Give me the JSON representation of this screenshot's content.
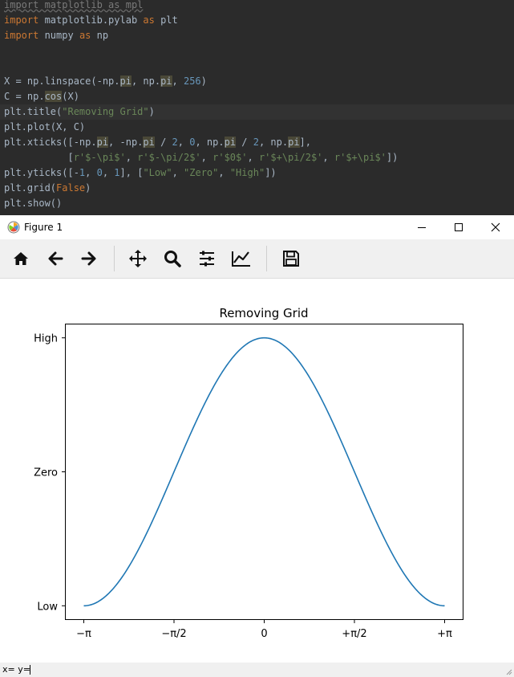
{
  "editor": {
    "lines": [
      {
        "segments": [
          {
            "t": "import matplotlib as mpl",
            "c": "dim"
          }
        ]
      },
      {
        "segments": [
          {
            "t": "import",
            "c": "kw"
          },
          {
            "t": " matplotlib.pylab "
          },
          {
            "t": "as",
            "c": "kw"
          },
          {
            "t": " plt"
          }
        ]
      },
      {
        "segments": [
          {
            "t": "import",
            "c": "kw"
          },
          {
            "t": " numpy "
          },
          {
            "t": "as",
            "c": "kw"
          },
          {
            "t": " np"
          }
        ]
      },
      {
        "segments": []
      },
      {
        "segments": []
      },
      {
        "segments": [
          {
            "t": "X = np.linspace(-np."
          },
          {
            "t": "pi",
            "c": "hl"
          },
          {
            "t": ", np."
          },
          {
            "t": "pi",
            "c": "hl"
          },
          {
            "t": ", "
          },
          {
            "t": "256",
            "c": "num"
          },
          {
            "t": ")"
          }
        ]
      },
      {
        "segments": [
          {
            "t": "C = np."
          },
          {
            "t": "cos",
            "c": "hl"
          },
          {
            "t": "(X)"
          }
        ]
      },
      {
        "segments": [
          {
            "t": "plt.title("
          },
          {
            "t": "\"Removing Grid\"",
            "c": "str"
          },
          {
            "t": ")"
          }
        ],
        "current": true
      },
      {
        "segments": [
          {
            "t": "plt.plot(X, C)"
          }
        ]
      },
      {
        "segments": [
          {
            "t": "plt.xticks([-np."
          },
          {
            "t": "pi",
            "c": "hl"
          },
          {
            "t": ", -np."
          },
          {
            "t": "pi",
            "c": "hl"
          },
          {
            "t": " / "
          },
          {
            "t": "2",
            "c": "num"
          },
          {
            "t": ", "
          },
          {
            "t": "0",
            "c": "num"
          },
          {
            "t": ", np."
          },
          {
            "t": "pi",
            "c": "hl"
          },
          {
            "t": " / "
          },
          {
            "t": "2",
            "c": "num"
          },
          {
            "t": ", np."
          },
          {
            "t": "pi",
            "c": "hl"
          },
          {
            "t": "],"
          }
        ]
      },
      {
        "segments": [
          {
            "t": "           ["
          },
          {
            "t": "r'$-\\pi$'",
            "c": "str"
          },
          {
            "t": ", "
          },
          {
            "t": "r'$-\\pi/2$'",
            "c": "str"
          },
          {
            "t": ", "
          },
          {
            "t": "r'$0$'",
            "c": "str"
          },
          {
            "t": ", "
          },
          {
            "t": "r'$+\\pi/2$'",
            "c": "str"
          },
          {
            "t": ", "
          },
          {
            "t": "r'$+\\pi$'",
            "c": "str"
          },
          {
            "t": "])"
          }
        ]
      },
      {
        "segments": [
          {
            "t": "plt.yticks([-"
          },
          {
            "t": "1",
            "c": "num"
          },
          {
            "t": ", "
          },
          {
            "t": "0",
            "c": "num"
          },
          {
            "t": ", "
          },
          {
            "t": "1",
            "c": "num"
          },
          {
            "t": "], ["
          },
          {
            "t": "\"Low\"",
            "c": "str"
          },
          {
            "t": ", "
          },
          {
            "t": "\"Zero\"",
            "c": "str"
          },
          {
            "t": ", "
          },
          {
            "t": "\"High\"",
            "c": "str"
          },
          {
            "t": "])"
          }
        ]
      },
      {
        "segments": [
          {
            "t": "plt.grid("
          },
          {
            "t": "False",
            "c": "kw"
          },
          {
            "t": ")"
          }
        ]
      },
      {
        "segments": [
          {
            "t": "plt.show()"
          }
        ]
      }
    ]
  },
  "window": {
    "title": "Figure 1",
    "controls": [
      "minimize",
      "maximize",
      "close"
    ]
  },
  "toolbar": {
    "buttons": [
      {
        "name": "home-icon",
        "tooltip": "Home"
      },
      {
        "name": "back-icon",
        "tooltip": "Back"
      },
      {
        "name": "forward-icon",
        "tooltip": "Forward"
      },
      {
        "name": "pan-icon",
        "tooltip": "Pan"
      },
      {
        "name": "zoom-icon",
        "tooltip": "Zoom"
      },
      {
        "name": "subplots-icon",
        "tooltip": "Subplots"
      },
      {
        "name": "customize-icon",
        "tooltip": "Customize"
      },
      {
        "name": "save-icon",
        "tooltip": "Save"
      }
    ]
  },
  "status": {
    "coords": "x= y="
  },
  "chart_data": {
    "type": "line",
    "title": "Removing Grid",
    "xlabel": "",
    "ylabel": "",
    "xlim": [
      -3.4558,
      3.4558
    ],
    "ylim": [
      -1.1,
      1.1
    ],
    "grid": false,
    "function": "cos(x)",
    "samples": 256,
    "x_range": [
      -3.14159,
      3.14159
    ],
    "line_color": "#1f77b4",
    "xticks": [
      {
        "value": -3.14159,
        "label": "−π"
      },
      {
        "value": -1.5708,
        "label": "−π/2"
      },
      {
        "value": 0,
        "label": "0"
      },
      {
        "value": 1.5708,
        "label": "+π/2"
      },
      {
        "value": 3.14159,
        "label": "+π"
      }
    ],
    "yticks": [
      {
        "value": -1,
        "label": "Low"
      },
      {
        "value": 0,
        "label": "Zero"
      },
      {
        "value": 1,
        "label": "High"
      }
    ]
  }
}
